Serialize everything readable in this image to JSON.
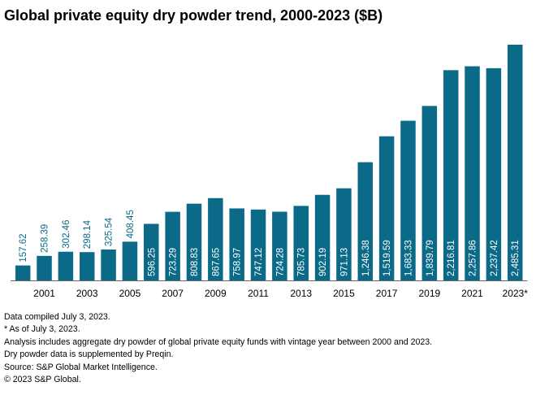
{
  "chart_data": {
    "type": "bar",
    "title": "Global private equity dry powder trend, 2000-2023 ($B)",
    "categories": [
      "2000",
      "2001",
      "2002",
      "2003",
      "2004",
      "2005",
      "2006",
      "2007",
      "2008",
      "2009",
      "2010",
      "2011",
      "2012",
      "2013",
      "2014",
      "2015",
      "2016",
      "2017",
      "2018",
      "2019",
      "2020",
      "2021",
      "2022",
      "2023*"
    ],
    "values": [
      157.62,
      258.39,
      302.46,
      298.14,
      325.54,
      408.45,
      596.25,
      723.29,
      808.83,
      867.65,
      758.97,
      747.12,
      724.28,
      785.73,
      902.19,
      971.13,
      1246.38,
      1519.59,
      1683.33,
      1839.79,
      2216.81,
      2257.86,
      2237.42,
      2485.31
    ],
    "value_labels": [
      "157.62",
      "258.39",
      "302.46",
      "298.14",
      "325.54",
      "408.45",
      "596.25",
      "723.29",
      "808.83",
      "867.65",
      "758.97",
      "747.12",
      "724.28",
      "785.73",
      "902.19",
      "971.13",
      "1,246.38",
      "1,519.59",
      "1,683.33",
      "1,839.79",
      "2,216.81",
      "2,257.86",
      "2,237.42",
      "2,485.31"
    ],
    "x_tick_labels": [
      "2001",
      "2003",
      "2005",
      "2007",
      "2009",
      "2011",
      "2013",
      "2015",
      "2017",
      "2019",
      "2021",
      "2023*"
    ],
    "xlabel": "",
    "ylabel": "",
    "y_axis_visible": false,
    "grid": false,
    "legend": "none",
    "colors": {
      "bar": "#0b6a87",
      "label_inside": "#ffffff",
      "label_outside": "#0b6a87",
      "axis": "#666666"
    }
  },
  "notes": [
    "Data compiled July 3, 2023.",
    "* As of July 3, 2023.",
    "Analysis includes aggregate dry powder of global private equity funds with vintage year between 2000 and 2023.",
    "Dry powder data is supplemented by Preqin.",
    "Source: S&P Global Market Intelligence.",
    "© 2023 S&P Global."
  ]
}
